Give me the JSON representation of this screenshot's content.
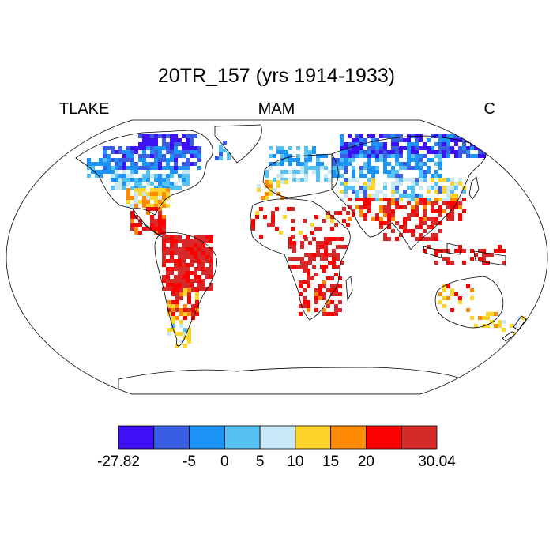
{
  "title": "20TR_157 (yrs 1914-1933)",
  "left_label": "TLAKE",
  "center_label": "MAM",
  "right_label": "C",
  "colorbar": {
    "colors": [
      "#3d10f5",
      "#3a5ee3",
      "#1b93f7",
      "#56c2f3",
      "#c9e8f6",
      "#fdd52a",
      "#fd8a00",
      "#fd0000",
      "#d62a2a"
    ],
    "labels": [
      "-27.82",
      "-5",
      "0",
      "5",
      "10",
      "15",
      "20",
      "30.04"
    ]
  }
}
